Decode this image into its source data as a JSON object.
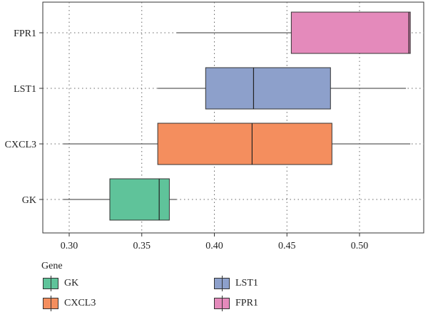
{
  "chart_data": {
    "type": "boxplot",
    "orientation": "horizontal",
    "title": "",
    "xlabel": "",
    "ylabel": "",
    "categories": [
      "GK",
      "CXCL3",
      "LST1",
      "FPR1"
    ],
    "xlim": [
      0.28,
      0.54
    ],
    "x_ticks": [
      "0.30",
      "0.35",
      "0.40",
      "0.45",
      "0.50"
    ],
    "x_tick_values": [
      0.3,
      0.35,
      0.4,
      0.45,
      0.5
    ],
    "grid": "dotted",
    "boxes": [
      {
        "name": "GK",
        "whisker_low": 0.296,
        "q1": 0.328,
        "median": 0.362,
        "q3": 0.369,
        "whisker_high": 0.374,
        "color": "#5fc39a"
      },
      {
        "name": "CXCL3",
        "whisker_low": 0.296,
        "q1": 0.361,
        "median": 0.426,
        "q3": 0.481,
        "whisker_high": 0.535,
        "color": "#f48e5e"
      },
      {
        "name": "LST1",
        "whisker_low": 0.361,
        "q1": 0.394,
        "median": 0.427,
        "q3": 0.48,
        "whisker_high": 0.532,
        "color": "#8da0cb"
      },
      {
        "name": "FPR1",
        "whisker_low": 0.374,
        "q1": 0.453,
        "median": 0.534,
        "q3": 0.535,
        "whisker_high": 0.535,
        "color": "#e48abb"
      }
    ],
    "legend": {
      "title": "Gene",
      "placement": "bottom",
      "items": [
        {
          "label": "GK",
          "color": "#5fc39a"
        },
        {
          "label": "LST1",
          "color": "#8da0cb"
        },
        {
          "label": "CXCL3",
          "color": "#f48e5e"
        },
        {
          "label": "FPR1",
          "color": "#e48abb"
        }
      ]
    }
  }
}
